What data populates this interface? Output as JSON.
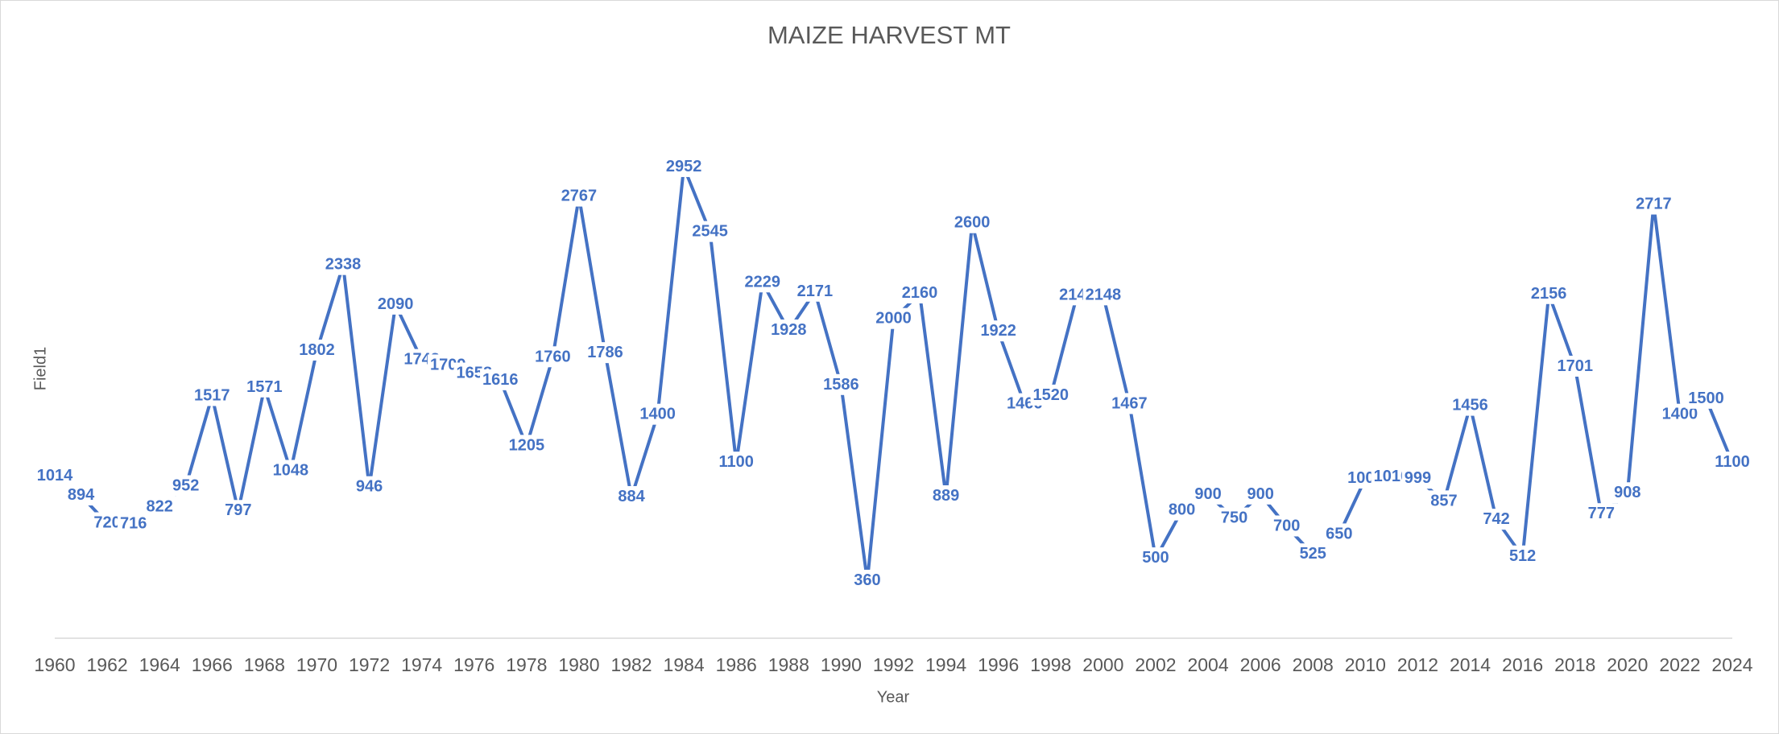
{
  "chart_data": {
    "type": "line",
    "title": "MAIZE HARVEST MT",
    "x_label": "Year",
    "y_label": "Field1",
    "x": [
      1960,
      1961,
      1962,
      1963,
      1964,
      1965,
      1966,
      1967,
      1968,
      1969,
      1970,
      1971,
      1972,
      1973,
      1974,
      1975,
      1976,
      1977,
      1978,
      1979,
      1980,
      1981,
      1982,
      1983,
      1984,
      1985,
      1986,
      1987,
      1988,
      1989,
      1990,
      1991,
      1992,
      1993,
      1994,
      1995,
      1996,
      1997,
      1998,
      1999,
      2000,
      2001,
      2002,
      2003,
      2004,
      2005,
      2006,
      2007,
      2008,
      2009,
      2010,
      2011,
      2012,
      2013,
      2014,
      2015,
      2016,
      2017,
      2018,
      2019,
      2020,
      2021,
      2022,
      2023,
      2024
    ],
    "values": [
      1014,
      894,
      720,
      716,
      822,
      952,
      1517,
      797,
      1571,
      1048,
      1802,
      2338,
      946,
      2090,
      1743,
      1709,
      1658,
      1616,
      1205,
      1760,
      2767,
      1786,
      884,
      1400,
      2952,
      2545,
      1100,
      2229,
      1928,
      2171,
      1586,
      360,
      2000,
      2160,
      889,
      2600,
      1922,
      1466,
      1520,
      2148,
      2148,
      1467,
      500,
      800,
      900,
      750,
      900,
      700,
      525,
      650,
      1000,
      1010,
      999,
      857,
      1456,
      742,
      512,
      2156,
      1701,
      777,
      908,
      2717,
      1400,
      1500,
      1100
    ],
    "color": "#4472c4",
    "xlim": [
      1960,
      2024
    ],
    "xticks": [
      1960,
      1962,
      1964,
      1966,
      1968,
      1970,
      1972,
      1974,
      1976,
      1978,
      1980,
      1982,
      1984,
      1986,
      1988,
      1990,
      1992,
      1994,
      1996,
      1998,
      2000,
      2002,
      2004,
      2006,
      2008,
      2010,
      2012,
      2014,
      2016,
      2018,
      2020,
      2022,
      2024
    ],
    "ylim": [
      0,
      3500
    ],
    "grid": false,
    "data_labels": true
  }
}
